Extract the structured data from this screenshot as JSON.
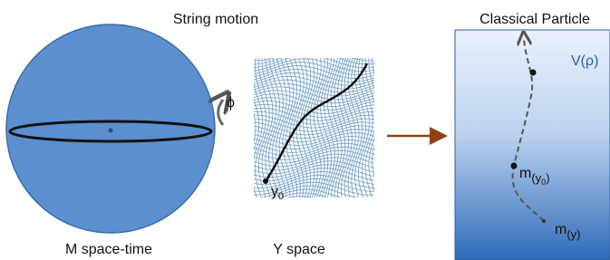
{
  "header": {
    "title": "String motion"
  },
  "left": {
    "phi": "ϕ",
    "label": "M space-time"
  },
  "middle": {
    "y0": {
      "main": "y",
      "sub": "0"
    },
    "label": "Y space"
  },
  "right": {
    "title": "Classical Particle",
    "potential": "V(ρ)",
    "m_y0": {
      "main": "m",
      "sub": "(y",
      "subsub": "0",
      "close": ")"
    },
    "m_y": {
      "main": "m",
      "sub": "(y)"
    }
  }
}
